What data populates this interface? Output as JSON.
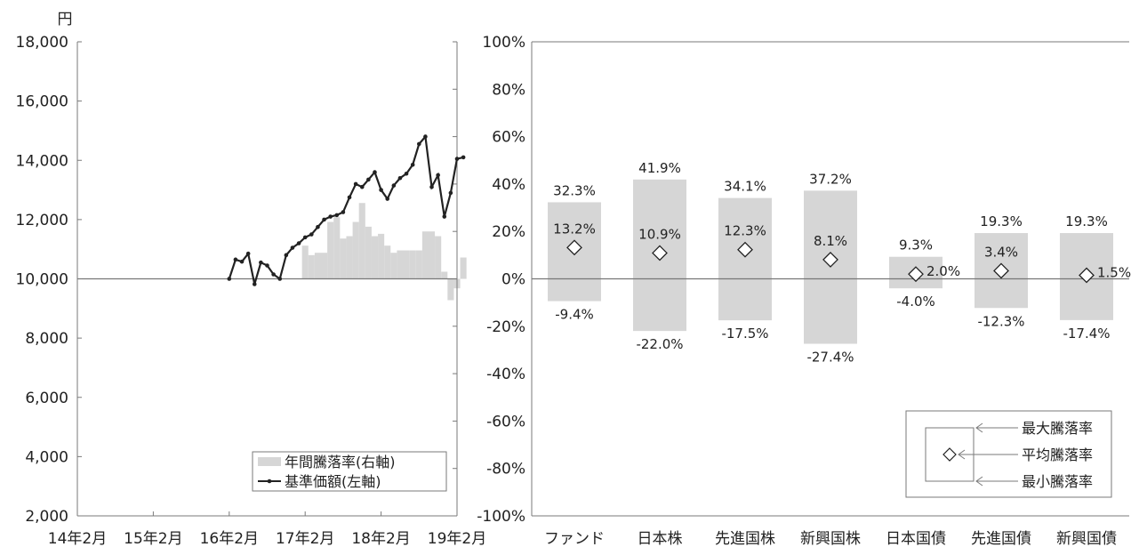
{
  "chart_data": [
    {
      "type": "line",
      "ylabel": "円",
      "y_unit_label": "円",
      "y_left": {
        "min": 2000,
        "max": 18000,
        "ticks": [
          "2,000",
          "4,000",
          "6,000",
          "8,000",
          "10,000",
          "12,000",
          "14,000",
          "16,000",
          "18,000"
        ]
      },
      "y_right": {
        "min": -100,
        "max": 100,
        "ticks": [
          "-100%",
          "-80%",
          "-60%",
          "-40%",
          "-20%",
          "0%",
          "20%",
          "40%",
          "60%",
          "80%",
          "100%"
        ]
      },
      "x_tick_labels": [
        "14年2月",
        "15年2月",
        "16年2月",
        "17年2月",
        "18年2月",
        "19年2月"
      ],
      "grid": false,
      "legend": {
        "position": "bottom-right",
        "bar_label": "年間騰落率(右軸)",
        "line_label": "基準価額(左軸)"
      },
      "series": [
        {
          "name": "基準価額(左軸)",
          "axis": "left",
          "kind": "line",
          "x_months_from_2014_02": [
            24,
            25,
            26,
            27,
            28,
            29,
            30,
            31,
            32,
            33,
            34,
            35,
            36,
            37,
            38,
            39,
            40,
            41,
            42,
            43,
            44,
            45,
            46,
            47,
            48,
            49,
            50,
            51,
            52,
            53,
            54,
            55,
            56,
            57,
            58,
            59,
            60,
            61
          ],
          "values": [
            10000,
            10650,
            10580,
            10850,
            9820,
            10550,
            10450,
            10150,
            10000,
            10800,
            11050,
            11200,
            11400,
            11500,
            11750,
            12000,
            12100,
            12150,
            12250,
            12750,
            13200,
            13100,
            13350,
            13600,
            13000,
            12700,
            13150,
            13400,
            13550,
            13850,
            14550,
            14800,
            13100,
            13500,
            12100,
            12900,
            14050,
            14100
          ]
        },
        {
          "name": "年間騰落率(右軸)",
          "axis": "right",
          "kind": "bar",
          "x_months_from_2014_02": [
            36,
            37,
            38,
            39,
            40,
            41,
            42,
            43,
            44,
            45,
            46,
            47,
            48,
            49,
            50,
            51,
            52,
            53,
            54,
            55,
            56,
            57,
            58,
            59,
            60,
            61
          ],
          "values": [
            14,
            10,
            11,
            11,
            24,
            26,
            17,
            18,
            24,
            32,
            22,
            18,
            19,
            14,
            11,
            12,
            12,
            12,
            12,
            20,
            20,
            18,
            3,
            -9,
            -4,
            9
          ]
        }
      ]
    },
    {
      "type": "bar",
      "y": {
        "min": -100,
        "max": 100,
        "ticks": [
          "-100%",
          "-80%",
          "-60%",
          "-40%",
          "-20%",
          "0%",
          "20%",
          "40%",
          "60%",
          "80%",
          "100%"
        ]
      },
      "grid": false,
      "categories": [
        "ファンド",
        "日本株",
        "先進国株",
        "新興国株",
        "日本国債",
        "先進国債",
        "新興国債"
      ],
      "max_values": [
        32.3,
        41.9,
        34.1,
        37.2,
        9.3,
        19.3,
        19.3
      ],
      "avg_values": [
        13.2,
        10.9,
        12.3,
        8.1,
        2.0,
        3.4,
        1.5
      ],
      "min_values": [
        -9.4,
        -22.0,
        -17.5,
        -27.4,
        -4.0,
        -12.3,
        -17.4
      ],
      "max_labels": [
        "32.3%",
        "41.9%",
        "34.1%",
        "37.2%",
        "9.3%",
        "19.3%",
        "19.3%"
      ],
      "avg_labels": [
        "13.2%",
        "10.9%",
        "12.3%",
        "8.1%",
        "2.0%",
        "3.4%",
        "1.5%"
      ],
      "min_labels": [
        "-9.4%",
        "-22.0%",
        "-17.5%",
        "-27.4%",
        "-4.0%",
        "-12.3%",
        "-17.4%"
      ],
      "legend": {
        "position": "bottom-right",
        "max_label": "最大騰落率",
        "avg_label": "平均騰落率",
        "min_label": "最小騰落率"
      }
    }
  ],
  "colors": {
    "bar_fill": "#d6d6d6",
    "line": "#222222",
    "axis": "#7a7a7a",
    "zero_line": "#777777",
    "marker_fill": "#ffffff"
  },
  "icons": {
    "line_marker": "dot",
    "avg_marker": "diamond",
    "legend_arrow": "left-arrow"
  }
}
